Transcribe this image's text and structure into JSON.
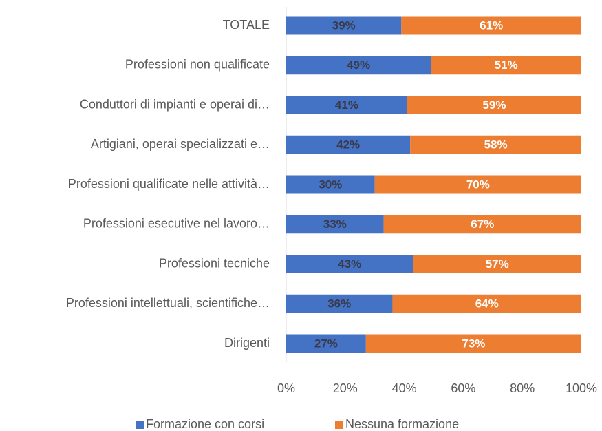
{
  "chart_data": {
    "type": "stacked_bar_horizontal",
    "categories": [
      "TOTALE",
      "Professioni non qualificate",
      "Conduttori di impianti e operai di…",
      "Artigiani, operai specializzati e…",
      "Professioni qualificate nelle attività…",
      "Professioni esecutive nel lavoro…",
      "Professioni tecniche",
      "Professioni intellettuali, scientifiche…",
      "Dirigenti"
    ],
    "series": [
      {
        "name": "Formazione con corsi",
        "color": "#4472c4",
        "values": [
          39,
          49,
          41,
          42,
          30,
          33,
          43,
          36,
          27
        ],
        "value_labels": [
          "39%",
          "49%",
          "41%",
          "42%",
          "30%",
          "33%",
          "43%",
          "36%",
          "27%"
        ]
      },
      {
        "name": "Nessuna formazione",
        "color": "#ed7d31",
        "values": [
          61,
          51,
          59,
          58,
          70,
          67,
          57,
          64,
          73
        ],
        "value_labels": [
          "61%",
          "51%",
          "59%",
          "58%",
          "70%",
          "67%",
          "57%",
          "64%",
          "73%"
        ]
      }
    ],
    "xlim": [
      0,
      100
    ],
    "xticks": [
      {
        "value": 0,
        "label": "0%"
      },
      {
        "value": 20,
        "label": "20%"
      },
      {
        "value": 40,
        "label": "40%"
      },
      {
        "value": 60,
        "label": "60%"
      },
      {
        "value": 80,
        "label": "80%"
      },
      {
        "value": 100,
        "label": "100%"
      }
    ],
    "legend": "bottom"
  }
}
